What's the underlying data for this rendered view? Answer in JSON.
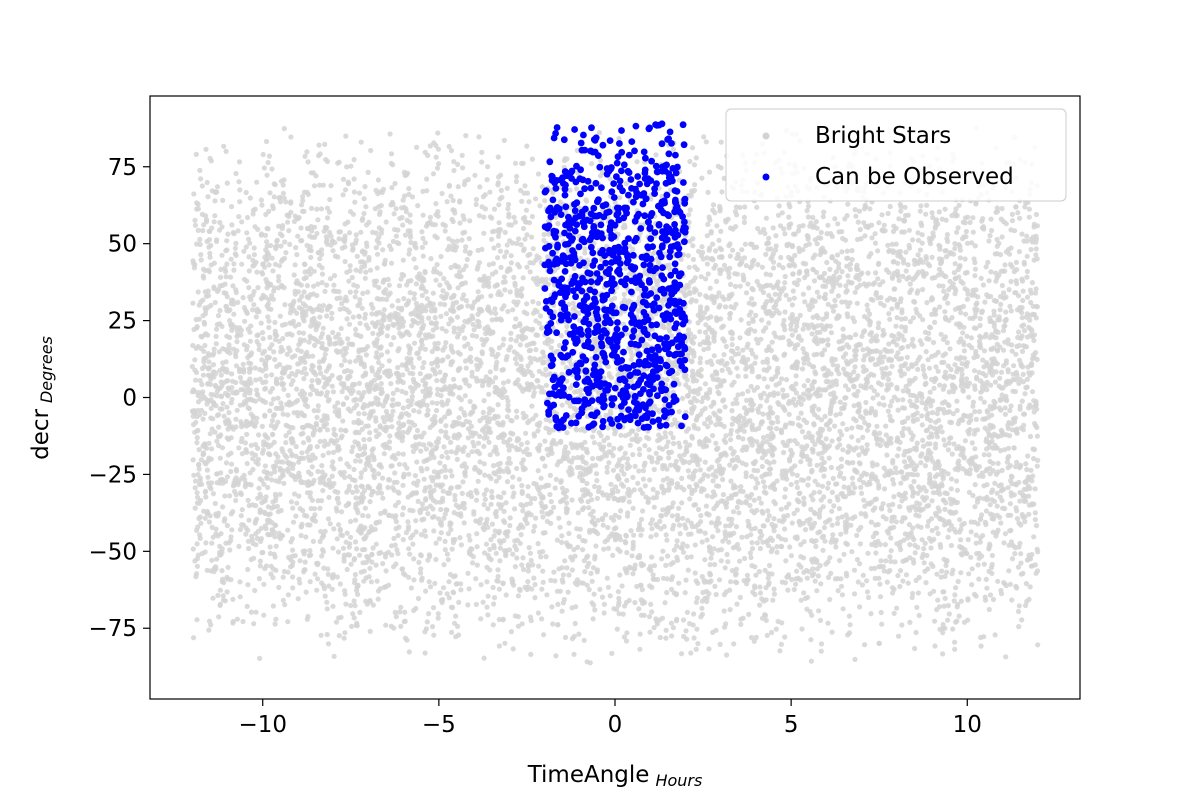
{
  "chart_data": {
    "type": "scatter",
    "xlabel": "TimeAngle",
    "xlabel_sub": "Hours",
    "ylabel": "decr",
    "ylabel_sub": "Degrees",
    "xlim": [
      -13.2,
      13.2
    ],
    "ylim": [
      -98,
      98
    ],
    "xticks": [
      -10,
      -5,
      0,
      5,
      10
    ],
    "yticks": [
      -75,
      -50,
      -25,
      0,
      25,
      50,
      75
    ],
    "xtick_labels": [
      "−10",
      "−5",
      "0",
      "5",
      "10"
    ],
    "ytick_labels": [
      "−75",
      "−50",
      "−25",
      "0",
      "25",
      "50",
      "75"
    ],
    "grid": false,
    "legend_position": "upper right",
    "series": [
      {
        "name": "Bright Stars",
        "color": "#d3d3d3",
        "marker": "circle",
        "point_count_approx": 9000,
        "x_range": [
          -12,
          12
        ],
        "y_range": [
          -88,
          90
        ],
        "distribution": "dense random field covering the full time-angle range"
      },
      {
        "name": "Can be Observed",
        "color": "#0000ff",
        "marker": "circle",
        "point_count_approx": 900,
        "x_range": [
          -2,
          2
        ],
        "y_range": [
          -10,
          89
        ],
        "distribution": "subset of stars with |time angle| ≤ 2 h and declination ≥ −10°"
      }
    ]
  }
}
